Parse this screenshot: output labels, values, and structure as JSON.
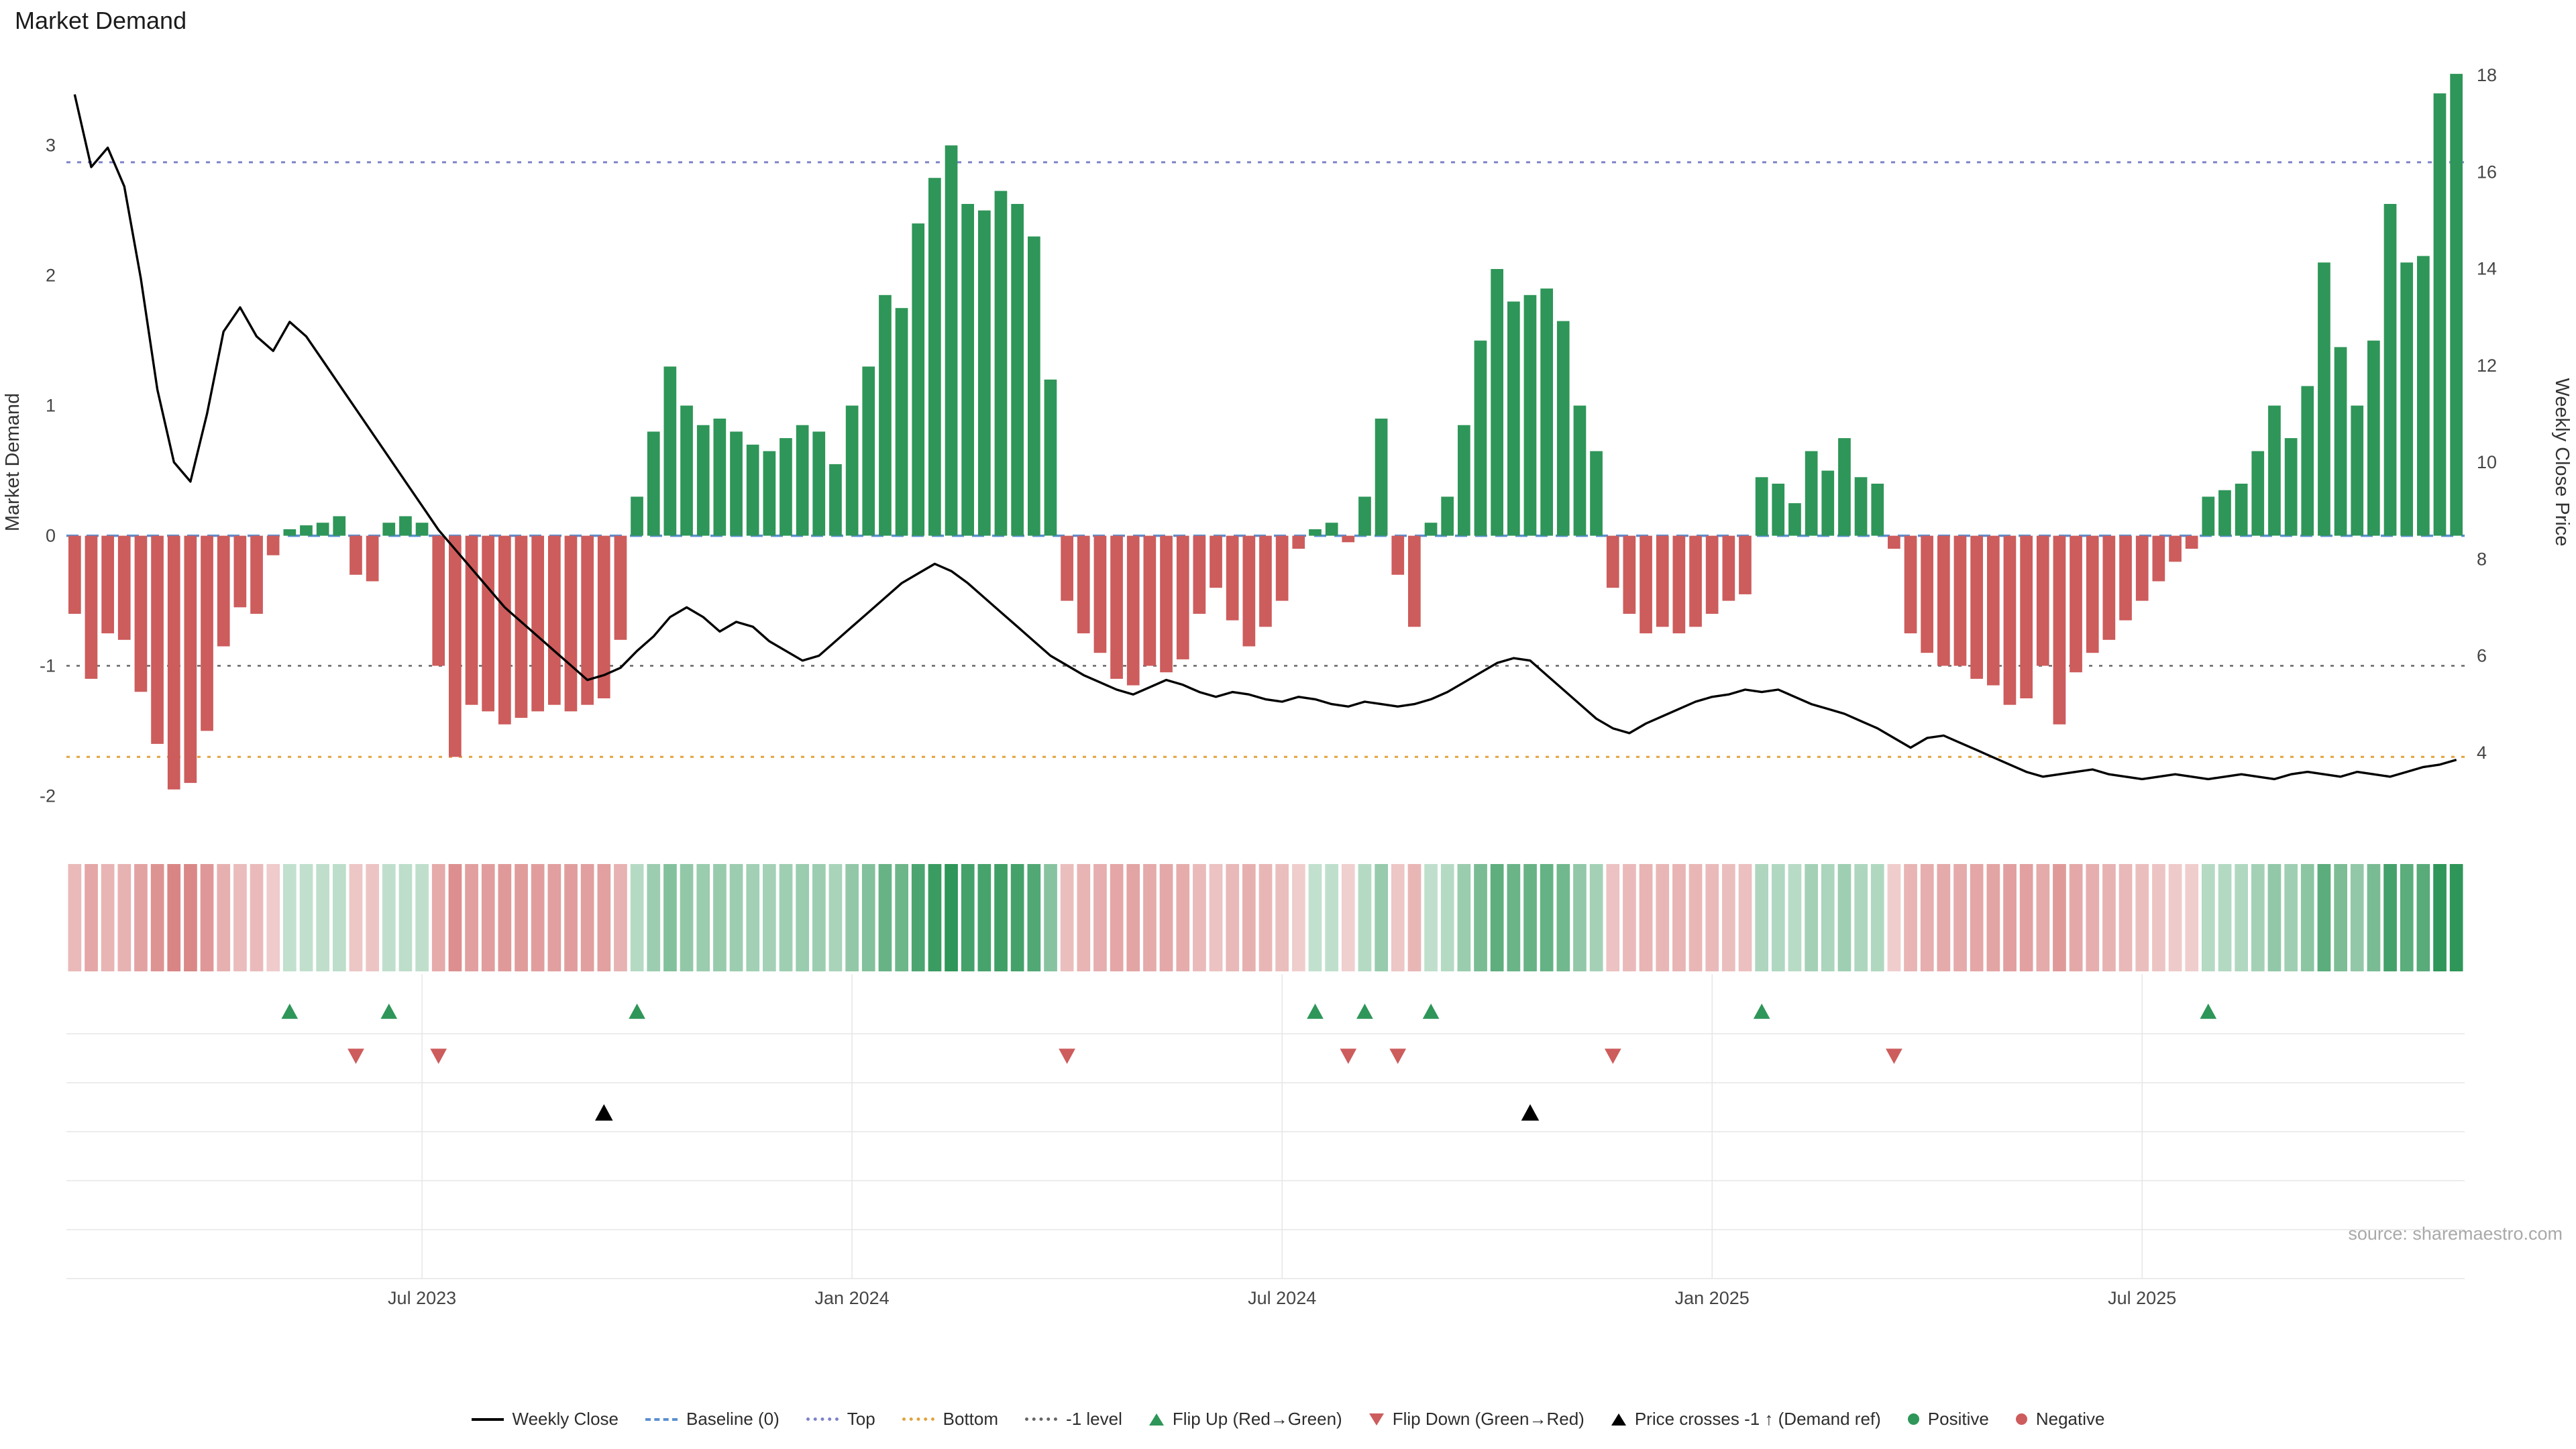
{
  "title": "Market Demand",
  "source": "source: sharemaestro.com",
  "legend": [
    {
      "label": "Weekly Close",
      "symbol": "black-solid-line"
    },
    {
      "label": "Baseline (0)",
      "symbol": "blue-dashed-line"
    },
    {
      "label": "Top",
      "symbol": "purple-dotted-line"
    },
    {
      "label": "Bottom",
      "symbol": "orange-dotted-line"
    },
    {
      "label": "-1 level",
      "symbol": "gray-dotted-line"
    },
    {
      "label": "Flip Up (Red→Green)",
      "symbol": "green-up-triangle"
    },
    {
      "label": "Flip Down (Green→Red)",
      "symbol": "red-down-triangle"
    },
    {
      "label": "Price crosses -1 ↑ (Demand ref)",
      "symbol": "black-up-triangle"
    },
    {
      "label": "Positive",
      "symbol": "green-dot"
    },
    {
      "label": "Negative",
      "symbol": "red-dot"
    }
  ],
  "chart_data": {
    "type": "bar",
    "subtype": "weekly demand bars + weekly close price line + heatmap strip + event marker rows",
    "title": "Market Demand",
    "x_unit": "weeks",
    "x_ticks": [
      {
        "week": 21,
        "label": "Jul 2023"
      },
      {
        "week": 47,
        "label": "Jan 2024"
      },
      {
        "week": 73,
        "label": "Jul 2024"
      },
      {
        "week": 99,
        "label": "Jan 2025"
      },
      {
        "week": 125,
        "label": "Jul 2025"
      }
    ],
    "demand_axis": {
      "label": "Market Demand",
      "min": -2.41,
      "max": 3.54,
      "ticks": [
        -2,
        -1,
        0,
        1,
        2,
        3
      ]
    },
    "price_axis": {
      "label": "Weekly Close Price",
      "min": 2.0,
      "max": 18.0,
      "ticks": [
        4,
        6,
        8,
        10,
        12,
        14,
        16,
        18
      ]
    },
    "reference_lines": {
      "baseline": 0,
      "top": 2.87,
      "neg1": -1,
      "bottom": -1.7
    },
    "demand": [
      -0.6,
      -1.1,
      -0.75,
      -0.8,
      -1.2,
      -1.6,
      -1.95,
      -1.9,
      -1.5,
      -0.85,
      -0.55,
      -0.6,
      -0.15,
      0.05,
      0.08,
      0.1,
      0.15,
      -0.3,
      -0.35,
      0.1,
      0.15,
      0.1,
      -1.0,
      -1.7,
      -1.3,
      -1.35,
      -1.45,
      -1.4,
      -1.35,
      -1.3,
      -1.35,
      -1.3,
      -1.25,
      -0.8,
      0.3,
      0.8,
      1.3,
      1.0,
      0.85,
      0.9,
      0.8,
      0.7,
      0.65,
      0.75,
      0.85,
      0.8,
      0.55,
      1.0,
      1.3,
      1.85,
      1.75,
      2.4,
      2.75,
      3.0,
      2.55,
      2.5,
      2.65,
      2.55,
      2.3,
      1.2,
      -0.5,
      -0.75,
      -0.9,
      -1.1,
      -1.15,
      -1.0,
      -1.05,
      -0.95,
      -0.6,
      -0.4,
      -0.65,
      -0.85,
      -0.7,
      -0.5,
      -0.1,
      0.05,
      0.1,
      -0.05,
      0.3,
      0.9,
      -0.3,
      -0.7,
      0.1,
      0.3,
      0.85,
      1.5,
      2.05,
      1.8,
      1.85,
      1.9,
      1.65,
      1.0,
      0.65,
      -0.4,
      -0.6,
      -0.75,
      -0.7,
      -0.75,
      -0.7,
      -0.6,
      -0.5,
      -0.45,
      0.45,
      0.4,
      0.25,
      0.65,
      0.5,
      0.75,
      0.45,
      0.4,
      -0.1,
      -0.75,
      -0.9,
      -1.0,
      -1.0,
      -1.1,
      -1.15,
      -1.3,
      -1.25,
      -1.0,
      -1.45,
      -1.05,
      -0.9,
      -0.8,
      -0.65,
      -0.5,
      -0.35,
      -0.2,
      -0.1,
      0.3,
      0.35,
      0.4,
      0.65,
      1.0,
      0.75,
      1.15,
      2.1,
      1.45,
      1.0,
      1.5,
      2.55,
      2.1,
      2.15,
      3.4,
      3.55
    ],
    "price": [
      17.6,
      16.1,
      16.5,
      15.7,
      13.8,
      11.5,
      10.0,
      9.6,
      11.0,
      12.7,
      13.2,
      12.6,
      12.3,
      12.9,
      12.6,
      12.1,
      11.6,
      11.1,
      10.6,
      10.1,
      9.6,
      9.1,
      8.6,
      8.2,
      7.8,
      7.4,
      7.0,
      6.7,
      6.4,
      6.1,
      5.8,
      5.5,
      5.6,
      5.75,
      6.1,
      6.4,
      6.8,
      7.0,
      6.8,
      6.5,
      6.7,
      6.6,
      6.3,
      6.1,
      5.9,
      6.0,
      6.3,
      6.6,
      6.9,
      7.2,
      7.5,
      7.7,
      7.9,
      7.75,
      7.5,
      7.2,
      6.9,
      6.6,
      6.3,
      6.0,
      5.8,
      5.6,
      5.45,
      5.3,
      5.2,
      5.35,
      5.5,
      5.4,
      5.25,
      5.15,
      5.25,
      5.2,
      5.1,
      5.05,
      5.15,
      5.1,
      5.0,
      4.95,
      5.05,
      5.0,
      4.95,
      5.0,
      5.1,
      5.25,
      5.45,
      5.65,
      5.85,
      5.95,
      5.9,
      5.6,
      5.3,
      5.0,
      4.7,
      4.5,
      4.4,
      4.6,
      4.75,
      4.9,
      5.05,
      5.15,
      5.2,
      5.3,
      5.25,
      5.3,
      5.15,
      5.0,
      4.9,
      4.8,
      4.65,
      4.5,
      4.3,
      4.1,
      4.3,
      4.35,
      4.2,
      4.05,
      3.9,
      3.75,
      3.6,
      3.5,
      3.55,
      3.6,
      3.65,
      3.55,
      3.5,
      3.45,
      3.5,
      3.55,
      3.5,
      3.45,
      3.5,
      3.55,
      3.5,
      3.45,
      3.55,
      3.6,
      3.55,
      3.5,
      3.6,
      3.55,
      3.5,
      3.6,
      3.7,
      3.75,
      3.85
    ],
    "markers": {
      "flip_up_weeks": [
        13,
        19,
        34,
        75,
        78,
        82,
        102,
        129
      ],
      "flip_down_weeks": [
        17,
        22,
        60,
        77,
        80,
        93,
        110
      ],
      "price_cross_weeks": [
        32,
        88
      ]
    },
    "heatmap": {
      "source": "demand",
      "negative_color": "#cd5c5c",
      "positive_color": "#2e9658"
    },
    "colors": {
      "positive": "#2e9658",
      "negative": "#cd5c5c",
      "price_line": "#000000",
      "baseline": "#5b8fd0",
      "top_line": "#7d82c9",
      "neg1_line": "#666666",
      "bottom_line": "#e2a33f",
      "grid": "#e6e6e6",
      "cross": "#000000"
    },
    "legend_position": "bottom-center",
    "grid": "off-main, light-grid-lower-panel"
  }
}
